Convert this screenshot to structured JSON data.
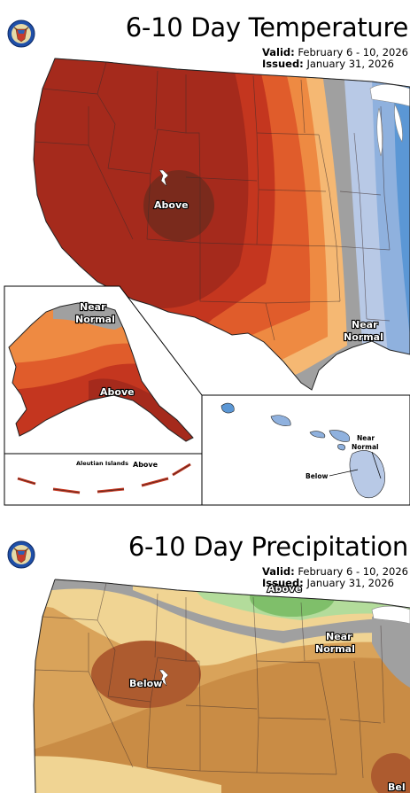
{
  "temperature": {
    "title": "6-10 Day Temperature",
    "valid_label": "Valid:",
    "valid_value": "February 6 - 10, 2026",
    "issued_label": "Issued:",
    "issued_value": "January 31, 2026",
    "labels": {
      "conus_above": "Above",
      "conus_near_normal": "Near Normal",
      "alaska_near_normal": "Near Normal",
      "alaska_above": "Above",
      "aleutian_name": "Aleutian Islands",
      "aleutian_above": "Above",
      "hawaii_near_normal": "Near Normal",
      "hawaii_below": "Below"
    },
    "colors": {
      "above_strong": "#7a2a1c",
      "above_high": "#a52a1c",
      "above_mid": "#c4361f",
      "above_low": "#e05c2b",
      "above_light": "#ee8a42",
      "above_pale": "#f5b873",
      "near_normal": "#a0a0a0",
      "below_pale": "#b8c9e6",
      "below_light": "#8fb1de",
      "below_mid": "#5b97d5"
    }
  },
  "precipitation": {
    "title": "6-10 Day Precipitation",
    "valid_label": "Valid:",
    "valid_value": "February 6 - 10, 2026",
    "issued_label": "Issued:",
    "issued_value": "January 31, 2026",
    "labels": {
      "above": "Above",
      "near_normal": "Near Normal",
      "below": "Below",
      "below_partial": "Bel"
    },
    "colors": {
      "above_mid": "#7fbf6a",
      "above_light": "#b3dc9b",
      "near_normal": "#a0a0a0",
      "below_pale": "#f0d493",
      "below_light": "#d9a35a",
      "below_mid": "#c98c45",
      "below_strong": "#ad5b2f"
    }
  }
}
